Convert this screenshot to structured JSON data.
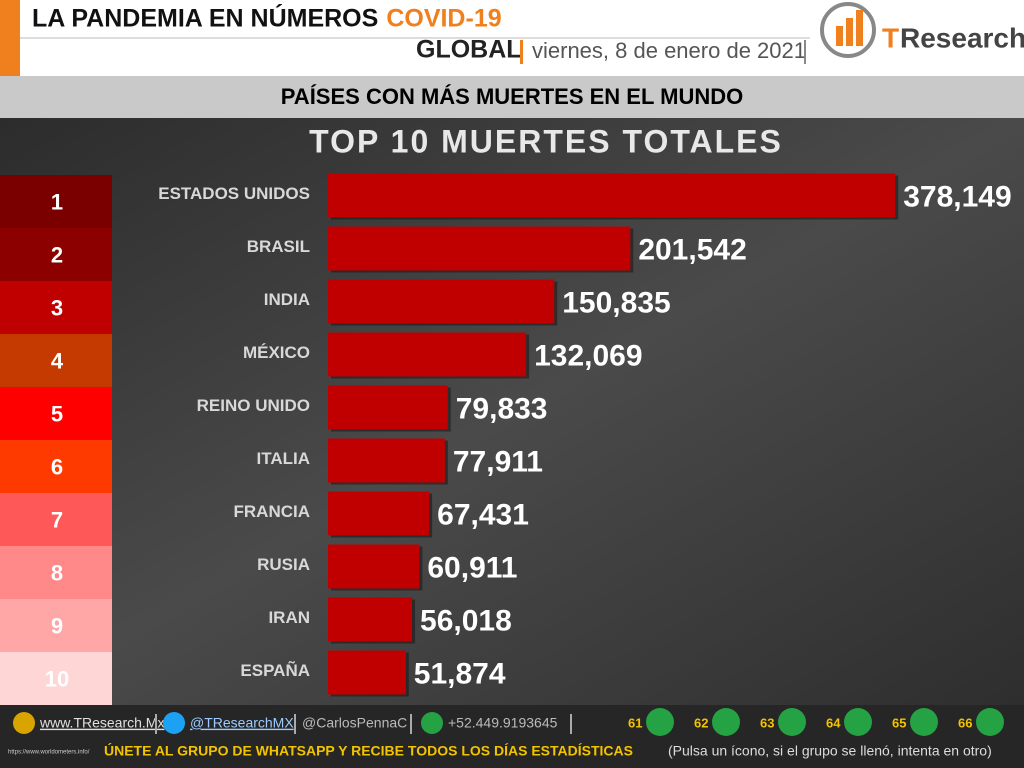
{
  "header": {
    "title": "LA PANDEMIA EN NÚMEROS",
    "title_highlight": "COVID-19",
    "scope": "GLOBAL",
    "date": "viernes, 8 de enero de 2021",
    "logo_t": "T",
    "logo_rest": "Research"
  },
  "subheader": "PAÍSES CON MÁS MUERTES EN EL MUNDO",
  "ranks": [
    1,
    2,
    3,
    4,
    5,
    6,
    7,
    8,
    9,
    10
  ],
  "rank_colors": [
    "#7a0000",
    "#8c0000",
    "#c00000",
    "#c43a00",
    "#ff0000",
    "#ff3a00",
    "#ff5858",
    "#ff8888",
    "#ffa6a6",
    "#ffd6d6"
  ],
  "chart_data": {
    "type": "hbar",
    "title": "TOP 10 MUERTES TOTALES",
    "categories": [
      "ESTADOS UNIDOS",
      "BRASIL",
      "INDIA",
      "MÉXICO",
      "REINO UNIDO",
      "ITALIA",
      "FRANCIA",
      "RUSIA",
      "IRAN",
      "ESPAÑA"
    ],
    "values": [
      378149,
      201542,
      150835,
      132069,
      79833,
      77911,
      67431,
      60911,
      56018,
      51874
    ],
    "value_labels": [
      "378,149",
      "201,542",
      "150,835",
      "132,069",
      "79,833",
      "77,911",
      "67,431",
      "60,911",
      "56,018",
      "51,874"
    ],
    "color": "#c00000",
    "xlim": [
      0,
      450000
    ]
  },
  "footer": {
    "website": "www.TResearch.Mx",
    "twitter": "@TResearchMX",
    "twitter2": "@CarlosPennaC",
    "phone": "+52.449.9193645",
    "groups": [
      61,
      62,
      63,
      64,
      65,
      66
    ],
    "cta": "ÚNETE AL GRUPO DE WHATSAPP Y RECIBE TODOS LOS DÍAS ESTADÍSTICAS",
    "cta_note": "(Pulsa un ícono, si el grupo se llenó, intenta en otro)",
    "source": "https://www.worldometers.info/"
  }
}
